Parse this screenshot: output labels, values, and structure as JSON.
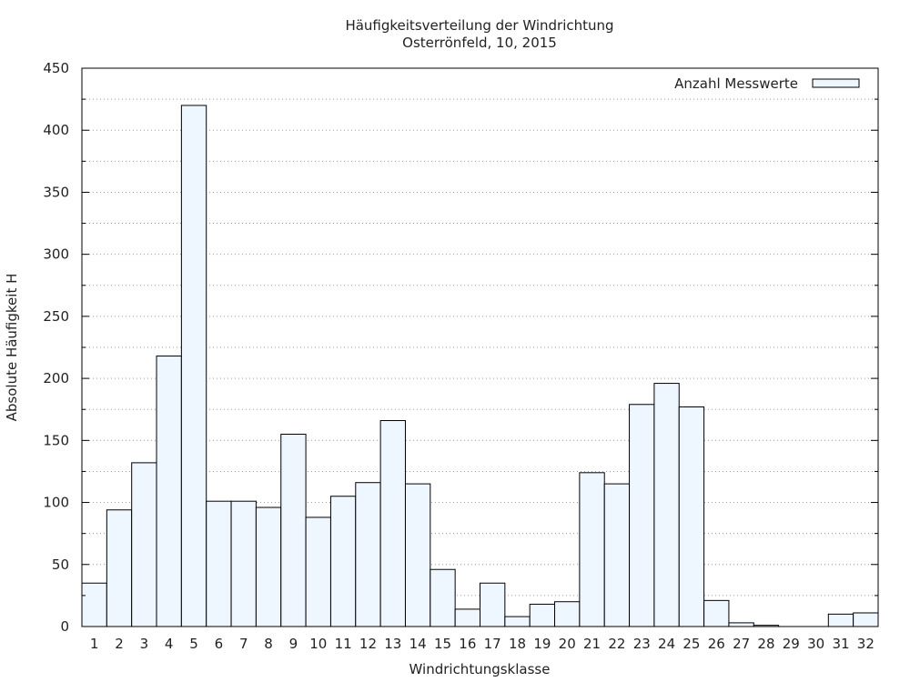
{
  "chart_data": {
    "type": "bar",
    "title": "Häufigkeitsverteilung der Windrichtung",
    "subtitle": "Osterrönfeld, 10, 2015",
    "xlabel": "Windrichtungsklasse",
    "ylabel": "Absolute Häufigkeit H",
    "ylim": [
      0,
      450
    ],
    "yticks": [
      0,
      50,
      100,
      150,
      200,
      250,
      300,
      350,
      400,
      450
    ],
    "grid": true,
    "legend_position": "top-right",
    "categories": [
      "1",
      "2",
      "3",
      "4",
      "5",
      "6",
      "7",
      "8",
      "9",
      "10",
      "11",
      "12",
      "13",
      "14",
      "15",
      "16",
      "17",
      "18",
      "19",
      "20",
      "21",
      "22",
      "23",
      "24",
      "25",
      "26",
      "27",
      "28",
      "29",
      "30",
      "31",
      "32"
    ],
    "series": [
      {
        "name": "Anzahl Messwerte",
        "values": [
          35,
          94,
          132,
          218,
          420,
          101,
          101,
          96,
          155,
          88,
          105,
          116,
          166,
          115,
          46,
          14,
          35,
          8,
          18,
          20,
          124,
          115,
          179,
          196,
          177,
          21,
          3,
          1,
          0,
          0,
          10,
          11
        ]
      }
    ],
    "colors": {
      "bar_fill": "#eef6ff",
      "bar_stroke": "#000000",
      "grid": "#9a9a9a",
      "axis": "#000000"
    }
  }
}
